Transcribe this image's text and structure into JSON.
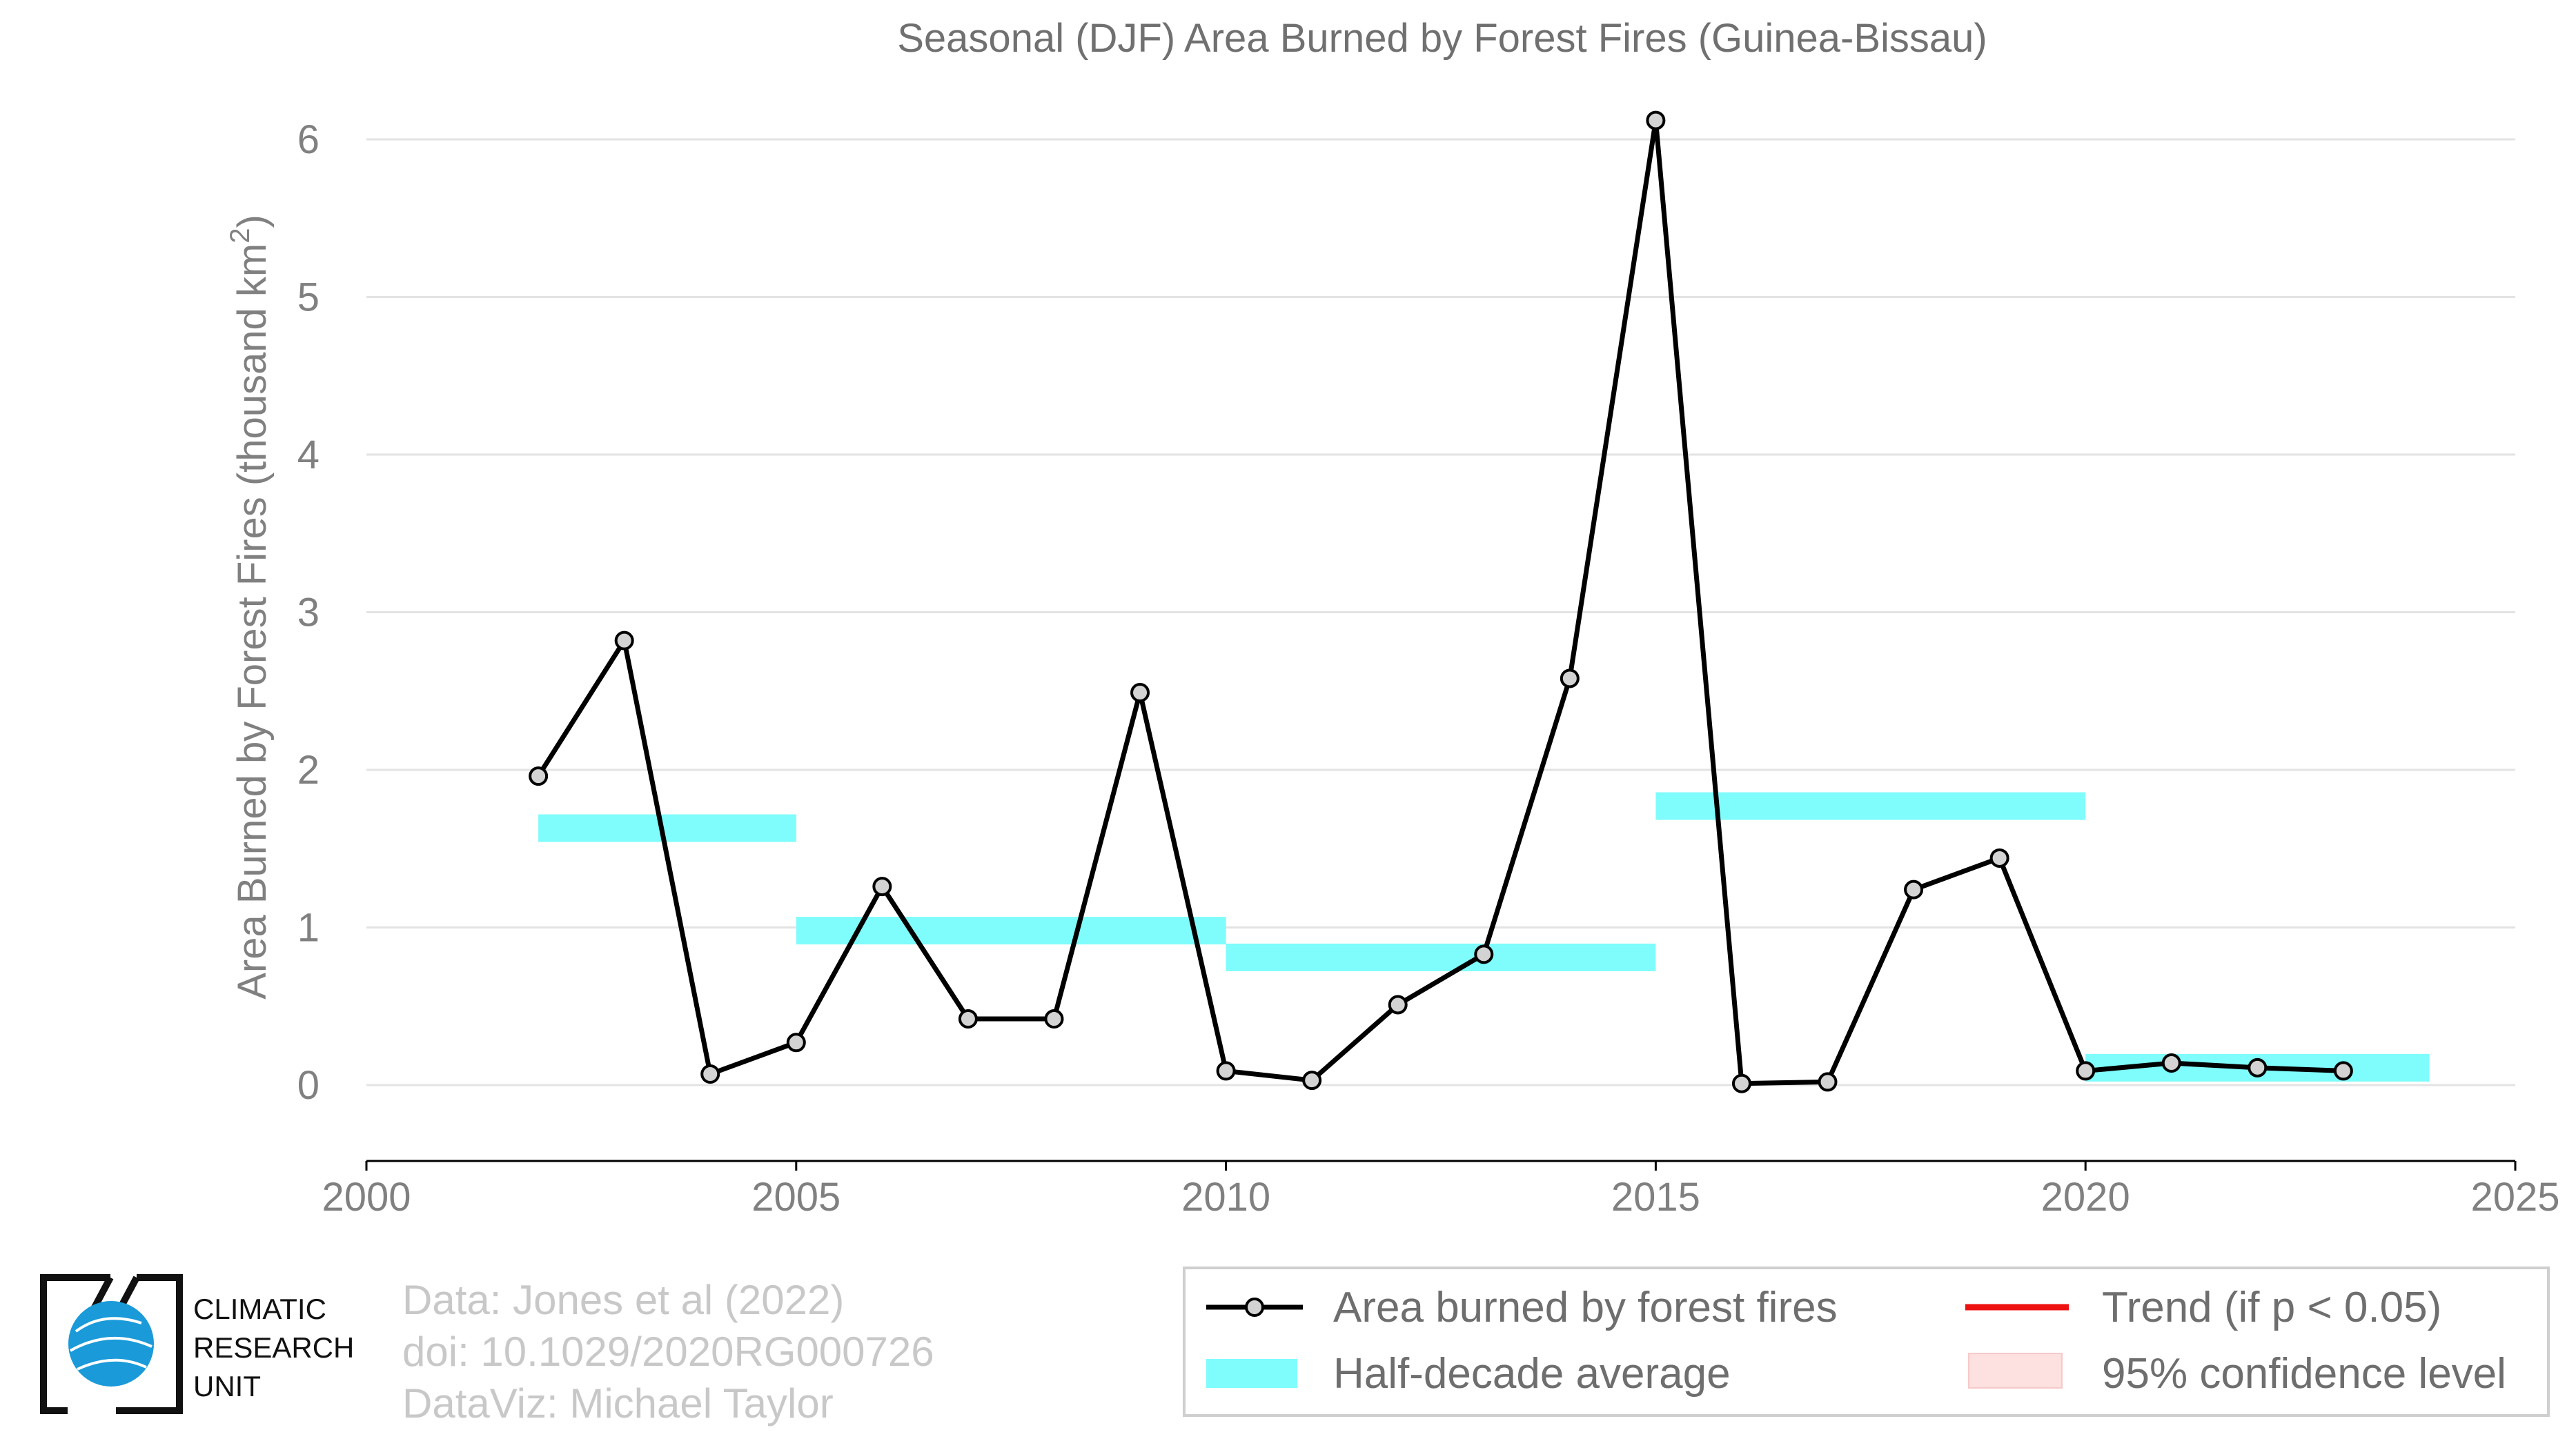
{
  "chart_data": {
    "type": "line",
    "title": "Seasonal (DJF) Area Burned by Forest Fires (Guinea-Bissau)",
    "ylabel_main": "Area Burned by Forest Fires (thousand km",
    "ylabel_sup": "2",
    "ylabel_close": ")",
    "xlim": [
      2000,
      2025
    ],
    "ylim": [
      -0.5,
      6.3
    ],
    "x_ticks": [
      "2000",
      "2005",
      "2010",
      "2015",
      "2020",
      "2025"
    ],
    "y_ticks": [
      "0",
      "1",
      "2",
      "3",
      "4",
      "5",
      "6"
    ],
    "grid": "horizontal",
    "series": [
      {
        "name": "Area burned by forest fires",
        "x": [
          2002,
          2003,
          2004,
          2005,
          2006,
          2007,
          2008,
          2009,
          2010,
          2011,
          2012,
          2013,
          2014,
          2015,
          2016,
          2017,
          2018,
          2019,
          2020,
          2021,
          2022,
          2023
        ],
        "values": [
          1.96,
          2.82,
          0.07,
          0.27,
          1.26,
          0.42,
          0.42,
          2.49,
          0.09,
          0.03,
          0.51,
          0.83,
          2.58,
          6.12,
          0.01,
          0.02,
          1.24,
          1.44,
          0.09,
          0.14,
          0.11,
          0.09
        ]
      }
    ],
    "half_decade_average": [
      {
        "x0": 2002,
        "x1": 2005,
        "y": 1.63
      },
      {
        "x0": 2005,
        "x1": 2010,
        "y": 0.98
      },
      {
        "x0": 2010,
        "x1": 2015,
        "y": 0.81
      },
      {
        "x0": 2015,
        "x1": 2020,
        "y": 1.77
      },
      {
        "x0": 2020,
        "x1": 2024,
        "y": 0.11
      }
    ],
    "legend": {
      "placement": "bottom-right",
      "items": [
        {
          "label": "Area burned by forest fires",
          "kind": "line-marker"
        },
        {
          "label": "Trend (if p < 0.05)",
          "kind": "line"
        },
        {
          "label": "Half-decade average",
          "kind": "band"
        },
        {
          "label": "95% confidence level",
          "kind": "patch"
        }
      ]
    },
    "colors": {
      "line": "#000000",
      "marker_fill": "#d3d3d3",
      "half_decade": "#7ffcfc",
      "trend": "#ee1111",
      "confidence": "#fde0e0",
      "grid": "#e3e3e3",
      "axis": "#000000"
    }
  },
  "credits": {
    "line1": "Data: Jones et al (2022)",
    "line2": "doi: 10.1029/2020RG000726",
    "line3": "DataViz: Michael Taylor"
  },
  "logo": {
    "line1": "CLIMATIC",
    "line2": "RESEARCH",
    "line3": "UNIT"
  }
}
